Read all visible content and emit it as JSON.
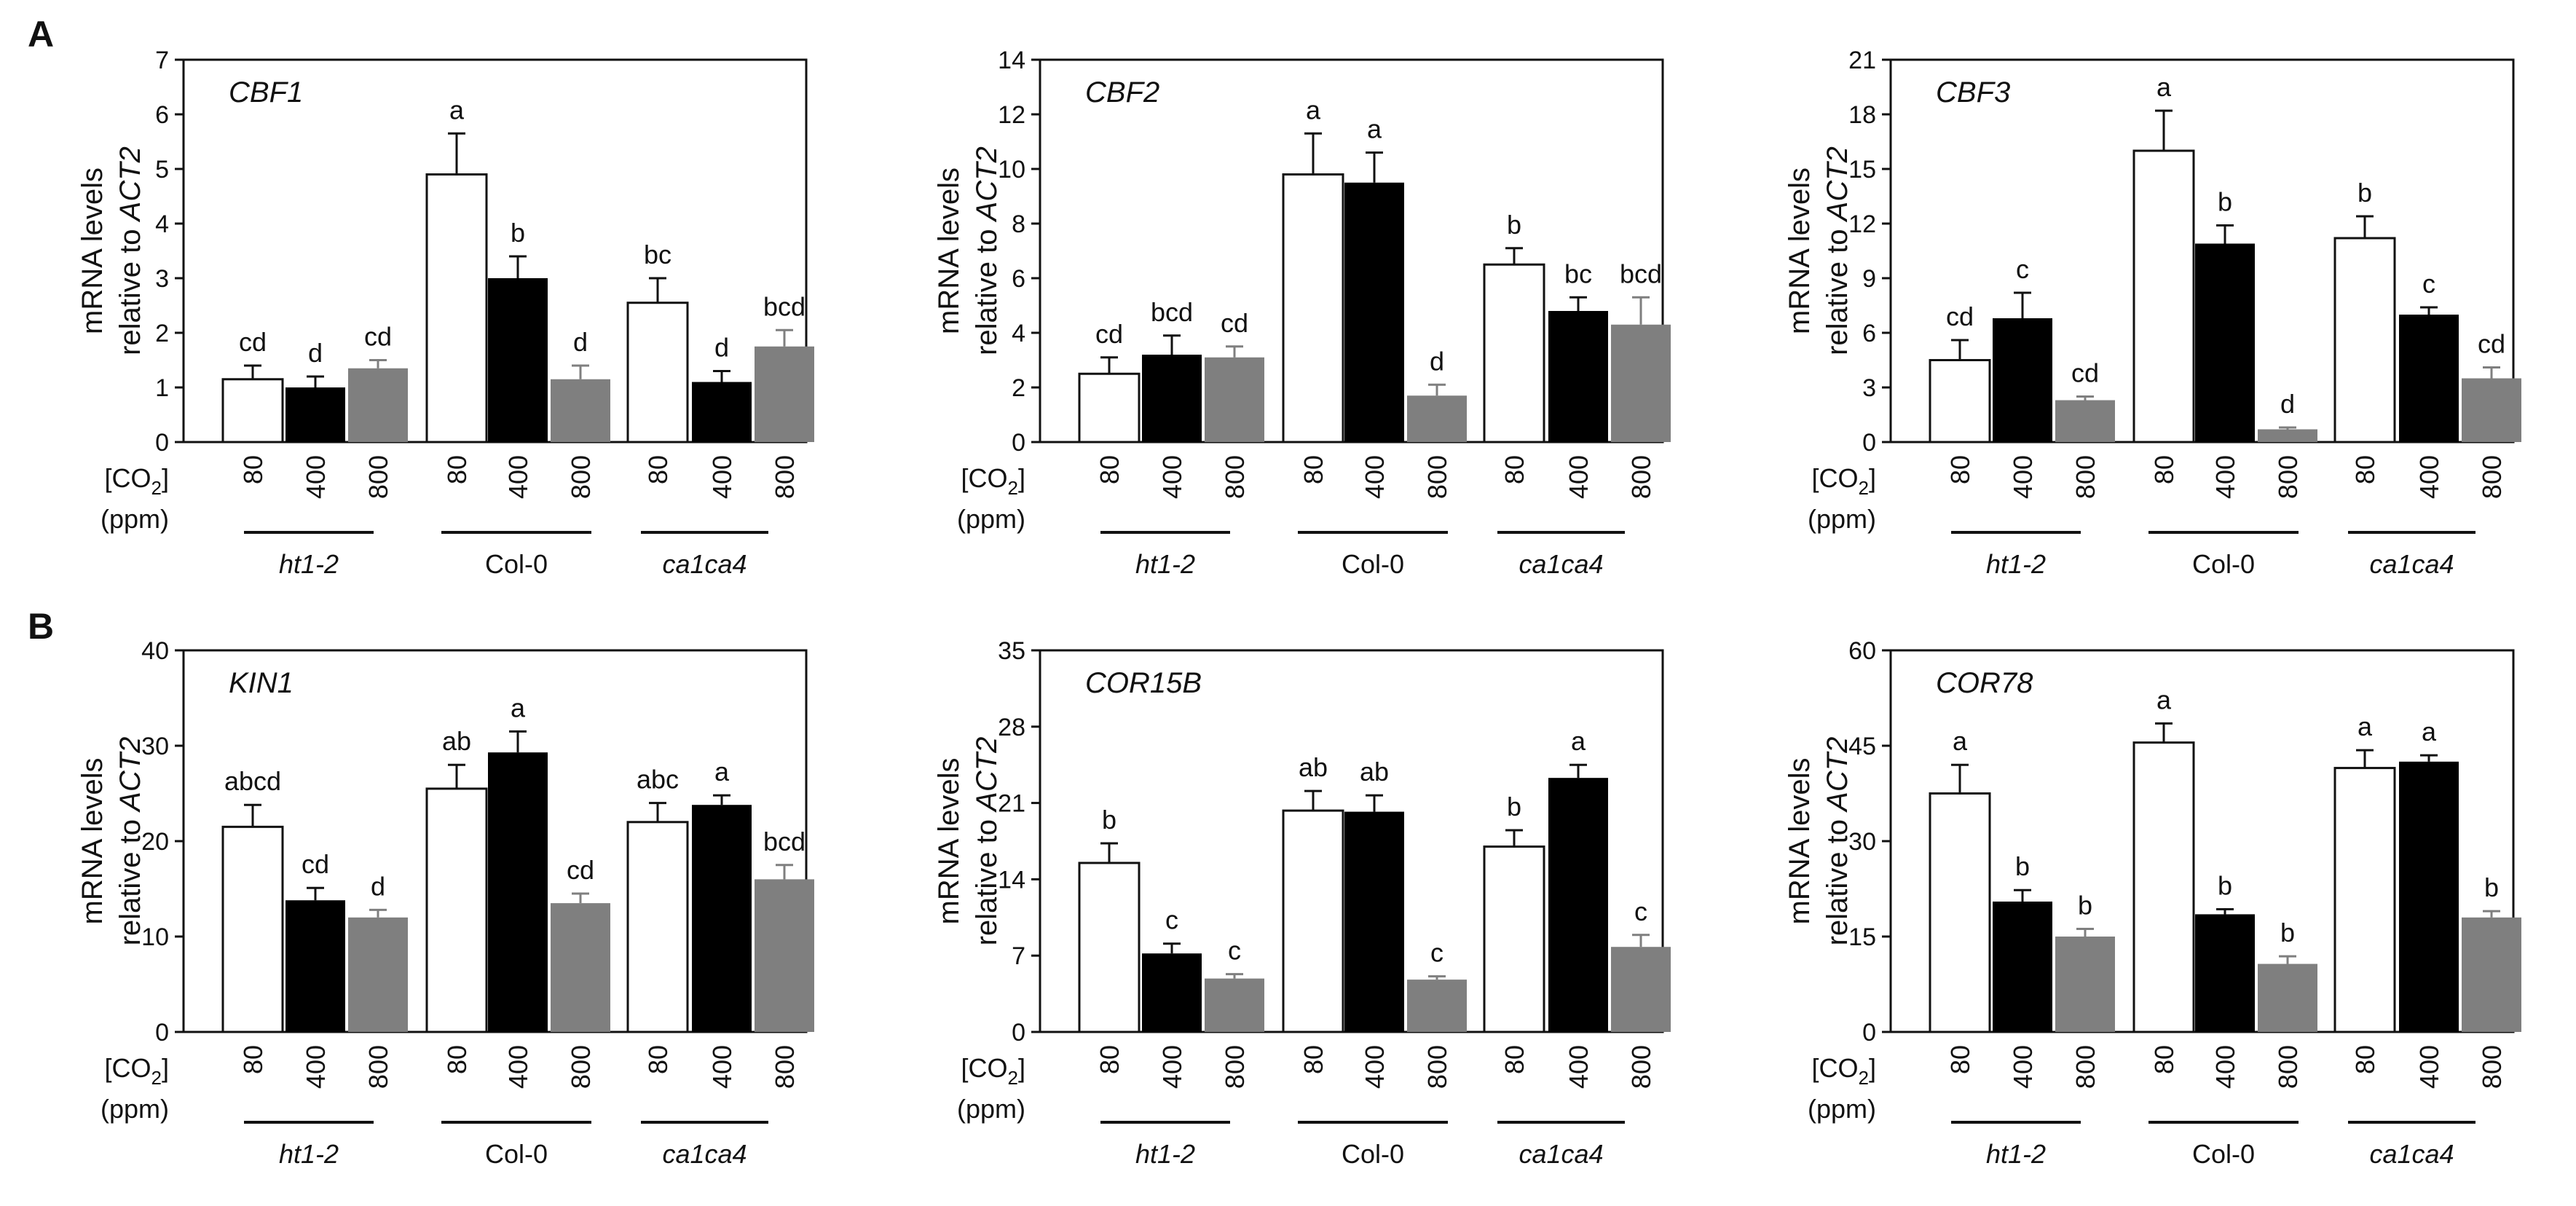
{
  "panel_labels": [
    "A",
    "B"
  ],
  "axis": {
    "ylabel_line1": "mRNA levels",
    "ylabel_line2_prefix": "relative to ",
    "ylabel_line2_gene": "ACT2"
  },
  "xaxis": {
    "co2_label": "[CO",
    "co2_subscript": "2",
    "co2_close": "]",
    "unit_label": "(ppm)",
    "doses": [
      "80",
      "400",
      "800"
    ],
    "groups": [
      "ht1-2",
      "Col-0",
      "ca1ca4"
    ],
    "group_italic": [
      true,
      false,
      true
    ]
  },
  "colors": {
    "80": "#ffffff",
    "400": "#000000",
    "800": "#7f7f7f",
    "axis": "#111111"
  },
  "chart_data": [
    {
      "type": "bar",
      "panel": "A",
      "title": "CBF1",
      "ylim": [
        0,
        7
      ],
      "yticks": [
        0,
        1,
        2,
        3,
        4,
        5,
        6,
        7
      ],
      "categories": [
        "ht1-2",
        "Col-0",
        "ca1ca4"
      ],
      "series": [
        {
          "name": "80",
          "values": [
            1.15,
            4.9,
            2.55
          ],
          "errors": [
            0.25,
            0.75,
            0.45
          ]
        },
        {
          "name": "400",
          "values": [
            1.0,
            3.0,
            1.1
          ],
          "errors": [
            0.2,
            0.4,
            0.2
          ]
        },
        {
          "name": "800",
          "values": [
            1.35,
            1.15,
            1.75
          ],
          "errors": [
            0.15,
            0.25,
            0.3
          ]
        }
      ],
      "sig_labels": [
        [
          "cd",
          "a",
          "bc"
        ],
        [
          "d",
          "b",
          "d"
        ],
        [
          "cd",
          "d",
          "bcd"
        ]
      ]
    },
    {
      "type": "bar",
      "panel": "A",
      "title": "CBF2",
      "ylim": [
        0,
        14
      ],
      "yticks": [
        0,
        2,
        4,
        6,
        8,
        10,
        12,
        14
      ],
      "categories": [
        "ht1-2",
        "Col-0",
        "ca1ca4"
      ],
      "series": [
        {
          "name": "80",
          "values": [
            2.5,
            9.8,
            6.5
          ],
          "errors": [
            0.6,
            1.5,
            0.6
          ]
        },
        {
          "name": "400",
          "values": [
            3.2,
            9.5,
            4.8
          ],
          "errors": [
            0.7,
            1.1,
            0.5
          ]
        },
        {
          "name": "800",
          "values": [
            3.1,
            1.7,
            4.3
          ],
          "errors": [
            0.4,
            0.4,
            1.0
          ]
        }
      ],
      "sig_labels": [
        [
          "cd",
          "a",
          "b"
        ],
        [
          "bcd",
          "a",
          "bc"
        ],
        [
          "cd",
          "d",
          "bcd"
        ]
      ]
    },
    {
      "type": "bar",
      "panel": "A",
      "title": "CBF3",
      "ylim": [
        0,
        21
      ],
      "yticks": [
        0,
        3,
        6,
        9,
        12,
        15,
        18,
        21
      ],
      "categories": [
        "ht1-2",
        "Col-0",
        "ca1ca4"
      ],
      "series": [
        {
          "name": "80",
          "values": [
            4.5,
            16.0,
            11.2
          ],
          "errors": [
            1.1,
            2.2,
            1.2
          ]
        },
        {
          "name": "400",
          "values": [
            6.8,
            10.9,
            7.0
          ],
          "errors": [
            1.4,
            1.0,
            0.4
          ]
        },
        {
          "name": "800",
          "values": [
            2.3,
            0.7,
            3.5
          ],
          "errors": [
            0.2,
            0.1,
            0.6
          ]
        }
      ],
      "sig_labels": [
        [
          "cd",
          "a",
          "b"
        ],
        [
          "c",
          "b",
          "c"
        ],
        [
          "cd",
          "d",
          "cd"
        ]
      ]
    },
    {
      "type": "bar",
      "panel": "B",
      "title": "KIN1",
      "ylim": [
        0,
        40
      ],
      "yticks": [
        0,
        10,
        20,
        30,
        40
      ],
      "categories": [
        "ht1-2",
        "Col-0",
        "ca1ca4"
      ],
      "series": [
        {
          "name": "80",
          "values": [
            21.5,
            25.5,
            22.0
          ],
          "errors": [
            2.3,
            2.5,
            2.0
          ]
        },
        {
          "name": "400",
          "values": [
            13.8,
            29.3,
            23.8
          ],
          "errors": [
            1.3,
            2.2,
            1.0
          ]
        },
        {
          "name": "800",
          "values": [
            12.0,
            13.5,
            16.0
          ],
          "errors": [
            0.8,
            1.0,
            1.5
          ]
        }
      ],
      "sig_labels": [
        [
          "abcd",
          "ab",
          "abc"
        ],
        [
          "cd",
          "a",
          "a"
        ],
        [
          "d",
          "cd",
          "bcd"
        ]
      ]
    },
    {
      "type": "bar",
      "panel": "B",
      "title": "COR15B",
      "ylim": [
        0,
        35
      ],
      "yticks": [
        0,
        7,
        14,
        21,
        28,
        35
      ],
      "categories": [
        "ht1-2",
        "Col-0",
        "ca1ca4"
      ],
      "series": [
        {
          "name": "80",
          "values": [
            15.5,
            20.3,
            17.0
          ],
          "errors": [
            1.8,
            1.8,
            1.5
          ]
        },
        {
          "name": "400",
          "values": [
            7.2,
            20.2,
            23.3
          ],
          "errors": [
            0.9,
            1.5,
            1.2
          ]
        },
        {
          "name": "800",
          "values": [
            4.9,
            4.8,
            7.8
          ],
          "errors": [
            0.4,
            0.3,
            1.1
          ]
        }
      ],
      "sig_labels": [
        [
          "b",
          "ab",
          "b"
        ],
        [
          "c",
          "ab",
          "a"
        ],
        [
          "c",
          "c",
          "c"
        ]
      ]
    },
    {
      "type": "bar",
      "panel": "B",
      "title": "COR78",
      "ylim": [
        0,
        60
      ],
      "yticks": [
        0,
        15,
        30,
        45,
        60
      ],
      "categories": [
        "ht1-2",
        "Col-0",
        "ca1ca4"
      ],
      "series": [
        {
          "name": "80",
          "values": [
            37.5,
            45.5,
            41.5
          ],
          "errors": [
            4.5,
            3.0,
            2.8
          ]
        },
        {
          "name": "400",
          "values": [
            20.5,
            18.5,
            42.5
          ],
          "errors": [
            1.8,
            0.8,
            1.0
          ]
        },
        {
          "name": "800",
          "values": [
            15.0,
            10.7,
            18.0
          ],
          "errors": [
            1.2,
            1.2,
            1.0
          ]
        }
      ],
      "sig_labels": [
        [
          "a",
          "a",
          "a"
        ],
        [
          "b",
          "b",
          "a"
        ],
        [
          "b",
          "b",
          "b"
        ]
      ]
    }
  ]
}
